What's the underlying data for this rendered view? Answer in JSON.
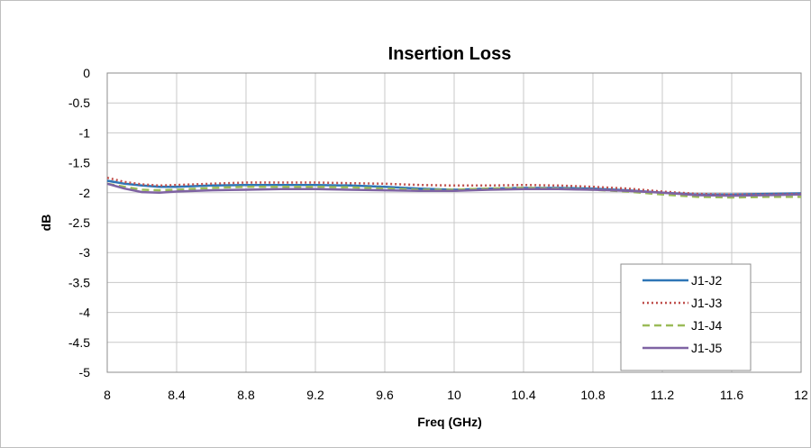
{
  "chart_data": {
    "type": "line",
    "title": "Insertion Loss",
    "xlabel": "Freq (GHz)",
    "ylabel": "dB",
    "xlim": [
      8,
      12
    ],
    "ylim": [
      -5,
      0
    ],
    "x_ticks": [
      "8",
      "8.4",
      "8.8",
      "9.2",
      "9.6",
      "10",
      "10.4",
      "10.8",
      "11.2",
      "11.6",
      "12"
    ],
    "y_ticks": [
      "0",
      "-0.5",
      "-1",
      "-1.5",
      "-2",
      "-2.5",
      "-3",
      "-3.5",
      "-4",
      "-4.5",
      "-5"
    ],
    "grid": true,
    "legend_position": "bottom-right",
    "x": [
      8.0,
      8.1,
      8.2,
      8.3,
      8.4,
      8.6,
      8.8,
      9.0,
      9.2,
      9.4,
      9.6,
      9.8,
      10.0,
      10.2,
      10.4,
      10.6,
      10.8,
      11.0,
      11.2,
      11.4,
      11.6,
      11.8,
      12.0
    ],
    "series": [
      {
        "name": "J1-J2",
        "color": "#2e75b6",
        "dash": "solid",
        "values": [
          -1.8,
          -1.85,
          -1.88,
          -1.9,
          -1.9,
          -1.88,
          -1.87,
          -1.87,
          -1.87,
          -1.88,
          -1.9,
          -1.93,
          -1.95,
          -1.93,
          -1.92,
          -1.92,
          -1.93,
          -1.96,
          -2.0,
          -2.03,
          -2.03,
          -2.02,
          -2.01
        ]
      },
      {
        "name": "J1-J3",
        "color": "#c0504d",
        "dash": "dotted",
        "values": [
          -1.75,
          -1.82,
          -1.86,
          -1.88,
          -1.87,
          -1.85,
          -1.83,
          -1.83,
          -1.83,
          -1.84,
          -1.85,
          -1.87,
          -1.88,
          -1.88,
          -1.87,
          -1.88,
          -1.9,
          -1.93,
          -1.98,
          -2.02,
          -2.03,
          -2.03,
          -2.02
        ]
      },
      {
        "name": "J1-J4",
        "color": "#9bbb59",
        "dash": "dashed",
        "values": [
          -1.85,
          -1.9,
          -1.95,
          -1.96,
          -1.95,
          -1.92,
          -1.9,
          -1.9,
          -1.9,
          -1.91,
          -1.93,
          -1.95,
          -1.95,
          -1.93,
          -1.92,
          -1.93,
          -1.95,
          -1.98,
          -2.03,
          -2.07,
          -2.08,
          -2.07,
          -2.07
        ]
      },
      {
        "name": "J1-J5",
        "color": "#7f63a3",
        "dash": "solid",
        "values": [
          -1.85,
          -1.93,
          -1.99,
          -2.0,
          -1.98,
          -1.96,
          -1.95,
          -1.94,
          -1.94,
          -1.95,
          -1.96,
          -1.97,
          -1.97,
          -1.95,
          -1.94,
          -1.94,
          -1.95,
          -1.97,
          -2.0,
          -2.04,
          -2.05,
          -2.04,
          -2.03
        ]
      }
    ]
  }
}
